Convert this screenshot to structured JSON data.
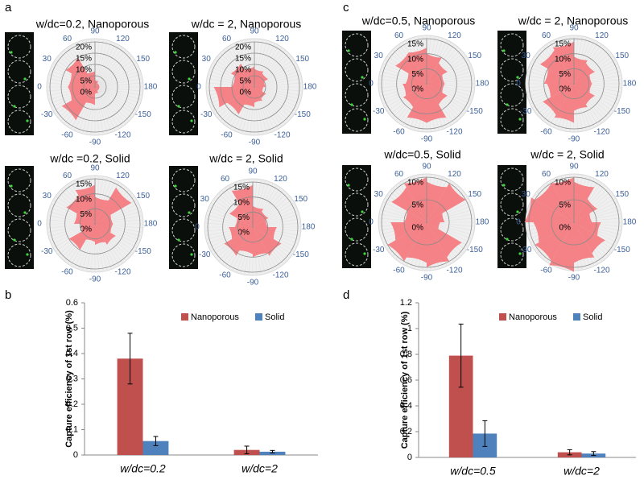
{
  "panel_labels": [
    "a",
    "b",
    "c",
    "d"
  ],
  "chart_data": [
    {
      "type": "polar-rose",
      "title": "w/dc=0.2, Nanoporous",
      "color": "#f4767a",
      "rlim": [
        0,
        20
      ],
      "r_ticks": [
        {
          "value": 0,
          "label": "0%"
        },
        {
          "value": 5,
          "label": "5%"
        },
        {
          "value": 10,
          "label": "10%"
        },
        {
          "value": 15,
          "label": "15%"
        },
        {
          "value": 20,
          "label": "20%"
        }
      ],
      "theta_ticks": [
        90,
        120,
        150,
        180,
        -150,
        -120,
        -90,
        -60,
        -30,
        0,
        30,
        60
      ],
      "values": [
        2,
        2,
        3,
        8,
        17,
        12,
        12,
        15,
        7,
        3,
        2,
        2
      ]
    },
    {
      "type": "polar-rose",
      "title": "w/dc = 2, Nanoporous",
      "color": "#f4767a",
      "rlim": [
        0,
        20
      ],
      "r_ticks": [
        {
          "value": 0,
          "label": "0%"
        },
        {
          "value": 5,
          "label": "5%"
        },
        {
          "value": 10,
          "label": "10%"
        },
        {
          "value": 15,
          "label": "15%"
        },
        {
          "value": 20,
          "label": "20%"
        }
      ],
      "theta_ticks": [
        90,
        120,
        150,
        180,
        -150,
        -120,
        -90,
        -60,
        -30,
        0,
        30,
        60
      ],
      "values": [
        4,
        6,
        7,
        9,
        14,
        18,
        10,
        12,
        9,
        8,
        7,
        5
      ]
    },
    {
      "type": "polar-rose",
      "title": "w/dc =0.2, Solid",
      "color": "#f4767a",
      "rlim": [
        0,
        15
      ],
      "r_ticks": [
        {
          "value": 0,
          "label": "0%"
        },
        {
          "value": 5,
          "label": "5%"
        },
        {
          "value": 10,
          "label": "10%"
        },
        {
          "value": 15,
          "label": "15%"
        }
      ],
      "theta_ticks": [
        90,
        120,
        150,
        180,
        -150,
        -120,
        -90,
        -60,
        -30,
        0,
        30,
        60
      ],
      "values": [
        6,
        8,
        7,
        6,
        10,
        5,
        7,
        11,
        13,
        9,
        14,
        6
      ]
    },
    {
      "type": "polar-rose",
      "title": "w/dc = 2, Solid",
      "color": "#f4767a",
      "rlim": [
        0,
        15
      ],
      "r_ticks": [
        {
          "value": 0,
          "label": "0%"
        },
        {
          "value": 5,
          "label": "5%"
        },
        {
          "value": 10,
          "label": "10%"
        },
        {
          "value": 15,
          "label": "15%"
        }
      ],
      "theta_ticks": [
        90,
        120,
        150,
        180,
        -150,
        -120,
        -90,
        -60,
        -30,
        0,
        30,
        60
      ],
      "values": [
        8,
        11,
        10,
        9,
        11,
        8,
        6,
        9,
        14,
        7,
        6,
        5
      ]
    },
    {
      "type": "bar",
      "ylabel": "Capture efficiency of 1st row (%)",
      "categories": [
        "w/dc=0.2",
        "w/dc=2"
      ],
      "ylim": [
        0,
        0.6
      ],
      "yticks": [
        0,
        0.1,
        0.2,
        0.3,
        0.4,
        0.5,
        0.6
      ],
      "legend": "top-right",
      "series": [
        {
          "name": "Nanoporous",
          "color": "#c0504d",
          "values": [
            0.38,
            0.02
          ],
          "errors": [
            0.1,
            0.015
          ]
        },
        {
          "name": "Solid",
          "color": "#4f81bd",
          "values": [
            0.055,
            0.013
          ],
          "errors": [
            0.018,
            0.005
          ]
        }
      ]
    },
    {
      "type": "polar-rose",
      "title": "w/dc=0.5, Nanoporous",
      "color": "#f4767a",
      "rlim": [
        0,
        15
      ],
      "r_ticks": [
        {
          "value": 0,
          "label": "0%"
        },
        {
          "value": 5,
          "label": "5%"
        },
        {
          "value": 10,
          "label": "10%"
        },
        {
          "value": 15,
          "label": "15%"
        }
      ],
      "theta_ticks": [
        90,
        120,
        150,
        180,
        -150,
        -120,
        -90,
        -60,
        -30,
        0,
        30,
        60
      ],
      "values": [
        6,
        8,
        13,
        13,
        9,
        8,
        7,
        12,
        12,
        10,
        8,
        6
      ]
    },
    {
      "type": "polar-rose",
      "title": "w/dc = 2, Nanoporous",
      "color": "#f4767a",
      "rlim": [
        0,
        15
      ],
      "r_ticks": [
        {
          "value": 0,
          "label": "0%"
        },
        {
          "value": 5,
          "label": "5%"
        },
        {
          "value": 10,
          "label": "10%"
        },
        {
          "value": 15,
          "label": "15%"
        }
      ],
      "theta_ticks": [
        90,
        120,
        150,
        180,
        -150,
        -120,
        -90,
        -60,
        -30,
        0,
        30,
        60
      ],
      "values": [
        6,
        8,
        9,
        13,
        12,
        9,
        10,
        13,
        14,
        9,
        8,
        6
      ]
    },
    {
      "type": "polar-rose",
      "title": "w/dc=0.5, Solid",
      "color": "#f4767a",
      "rlim": [
        0,
        10
      ],
      "r_ticks": [
        {
          "value": 0,
          "label": "0%"
        },
        {
          "value": 5,
          "label": "5%"
        },
        {
          "value": 10,
          "label": "10%"
        }
      ],
      "theta_ticks": [
        90,
        120,
        150,
        180,
        -150,
        -120,
        -90,
        -60,
        -30,
        0,
        30,
        60
      ],
      "values": [
        3,
        9,
        10,
        9,
        10,
        8,
        5,
        9,
        10,
        9,
        10,
        4
      ]
    },
    {
      "type": "polar-rose",
      "title": "w/dc = 2, Solid",
      "color": "#f4767a",
      "rlim": [
        0,
        10
      ],
      "r_ticks": [
        {
          "value": 0,
          "label": "0%"
        },
        {
          "value": 5,
          "label": "5%"
        },
        {
          "value": 10,
          "label": "10%"
        }
      ],
      "theta_ticks": [
        90,
        120,
        150,
        180,
        -150,
        -120,
        -90,
        -60,
        -30,
        0,
        30,
        60
      ],
      "values": [
        6,
        8,
        9,
        11,
        10,
        9,
        11,
        10,
        10,
        9,
        6,
        4
      ]
    },
    {
      "type": "bar",
      "ylabel": "Capture efficiency of 1st row (%)",
      "categories": [
        "w/dc=0.5",
        "w/dc=2"
      ],
      "ylim": [
        0,
        1.2
      ],
      "yticks": [
        0,
        0.2,
        0.4,
        0.6,
        0.8,
        1,
        1.2
      ],
      "legend": "top-right",
      "series": [
        {
          "name": "Nanoporous",
          "color": "#c0504d",
          "values": [
            0.79,
            0.04
          ],
          "errors": [
            0.245,
            0.02
          ]
        },
        {
          "name": "Solid",
          "color": "#4f81bd",
          "values": [
            0.185,
            0.03
          ],
          "errors": [
            0.1,
            0.015
          ]
        }
      ]
    }
  ]
}
